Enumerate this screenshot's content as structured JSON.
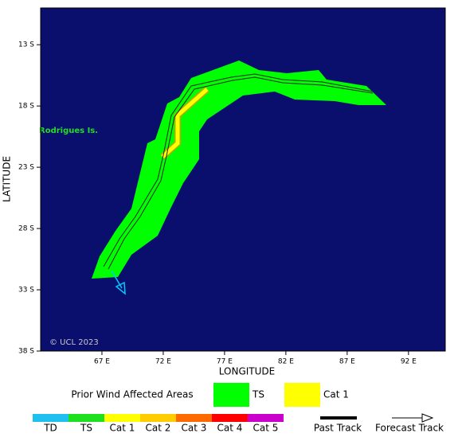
{
  "map": {
    "xlabel": "LONGITUDE",
    "ylabel": "LATITUDE",
    "xlim": [
      62,
      95
    ],
    "ylim": [
      38,
      10
    ],
    "xticks": [
      {
        "value": 67,
        "label": "67 E"
      },
      {
        "value": 72,
        "label": "72 E"
      },
      {
        "value": 77,
        "label": "77 E"
      },
      {
        "value": 82,
        "label": "82 E"
      },
      {
        "value": 87,
        "label": "87 E"
      },
      {
        "value": 92,
        "label": "92 E"
      }
    ],
    "yticks": [
      {
        "value": 13,
        "label": "13 S"
      },
      {
        "value": 18,
        "label": "18 S"
      },
      {
        "value": 23,
        "label": "23 S"
      },
      {
        "value": 28,
        "label": "28 S"
      },
      {
        "value": 33,
        "label": "33 S"
      },
      {
        "value": 38,
        "label": "38 S"
      }
    ],
    "place_label": "Rodrigues Is.",
    "copyright": "© UCL 2023"
  },
  "legend": {
    "title": "Prior Wind Affected Areas",
    "areas": [
      {
        "label": "TS",
        "color": "#00ff00"
      },
      {
        "label": "Cat 1",
        "color": "#ffff00"
      }
    ],
    "scale": [
      {
        "label": "TD",
        "color": "#1ec0f0"
      },
      {
        "label": "TS",
        "color": "#1ee01e"
      },
      {
        "label": "Cat 1",
        "color": "#ffff00"
      },
      {
        "label": "Cat 2",
        "color": "#ffcc00"
      },
      {
        "label": "Cat 3",
        "color": "#ff6a00"
      },
      {
        "label": "Cat 4",
        "color": "#ff0000"
      },
      {
        "label": "Cat 5",
        "color": "#cc00cc"
      }
    ],
    "past_track": "Past Track",
    "forecast_track": "Forecast Track"
  }
}
